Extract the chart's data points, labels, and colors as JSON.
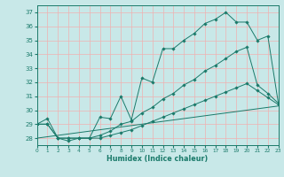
{
  "xlabel": "Humidex (Indice chaleur)",
  "background_color": "#c8e8e8",
  "grid_color": "#f0b0b0",
  "line_color": "#1a7a6a",
  "xlim": [
    0,
    23
  ],
  "ylim": [
    27.5,
    37.5
  ],
  "yticks": [
    28,
    29,
    30,
    31,
    32,
    33,
    34,
    35,
    36,
    37
  ],
  "xticks": [
    0,
    1,
    2,
    3,
    4,
    5,
    6,
    7,
    8,
    9,
    10,
    11,
    12,
    13,
    14,
    15,
    16,
    17,
    18,
    19,
    20,
    21,
    22,
    23
  ],
  "series1_x": [
    0,
    1,
    2,
    3,
    4,
    5,
    6,
    7,
    8,
    9,
    10,
    11,
    12,
    13,
    14,
    15,
    16,
    17,
    18,
    19,
    20,
    21,
    22,
    23
  ],
  "series1_y": [
    29.0,
    29.4,
    28.0,
    27.8,
    28.0,
    28.0,
    29.5,
    29.4,
    31.0,
    29.3,
    32.3,
    32.0,
    34.4,
    34.4,
    35.0,
    35.5,
    36.2,
    36.5,
    37.0,
    36.3,
    36.3,
    35.0,
    35.3,
    30.5
  ],
  "series2_x": [
    0,
    1,
    2,
    3,
    4,
    5,
    6,
    7,
    8,
    9,
    10,
    11,
    12,
    13,
    14,
    15,
    16,
    17,
    18,
    19,
    20,
    21,
    22,
    23
  ],
  "series2_y": [
    29.0,
    29.0,
    28.0,
    28.0,
    28.0,
    28.0,
    28.2,
    28.5,
    29.0,
    29.2,
    29.8,
    30.2,
    30.8,
    31.2,
    31.8,
    32.2,
    32.8,
    33.2,
    33.7,
    34.2,
    34.5,
    31.8,
    31.2,
    30.5
  ],
  "series3_x": [
    0,
    1,
    2,
    3,
    4,
    5,
    6,
    7,
    8,
    9,
    10,
    11,
    12,
    13,
    14,
    15,
    16,
    17,
    18,
    19,
    20,
    21,
    22,
    23
  ],
  "series3_y": [
    29.0,
    29.0,
    28.0,
    28.0,
    28.0,
    28.0,
    28.0,
    28.2,
    28.4,
    28.6,
    28.9,
    29.2,
    29.5,
    29.8,
    30.1,
    30.4,
    30.7,
    31.0,
    31.3,
    31.6,
    31.9,
    31.4,
    30.9,
    30.4
  ],
  "series4_x": [
    0,
    23
  ],
  "series4_y": [
    28.0,
    30.3
  ]
}
